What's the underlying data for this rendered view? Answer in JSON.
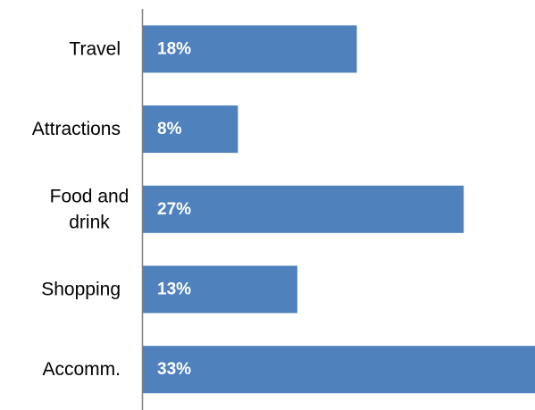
{
  "chart_data": {
    "type": "bar",
    "orientation": "horizontal",
    "categories": [
      "Travel",
      "Attractions",
      "Food and drink",
      "Shopping",
      "Accomm."
    ],
    "category_lines": [
      [
        "Travel"
      ],
      [
        "Attractions"
      ],
      [
        "Food and",
        "drink"
      ],
      [
        "Shopping"
      ],
      [
        "Accomm."
      ]
    ],
    "values": [
      18,
      8,
      27,
      13,
      33
    ],
    "value_labels": [
      "18%",
      "8%",
      "27%",
      "13%",
      "33%"
    ],
    "value_unit": "%",
    "xlim": [
      0,
      33
    ],
    "title": "",
    "xlabel": "",
    "ylabel": "",
    "grid": false,
    "legend": "none",
    "colors": {
      "bar": "#4F81BD",
      "axis": "#808080",
      "category_text": "#000000",
      "value_text": "#ffffff"
    }
  }
}
